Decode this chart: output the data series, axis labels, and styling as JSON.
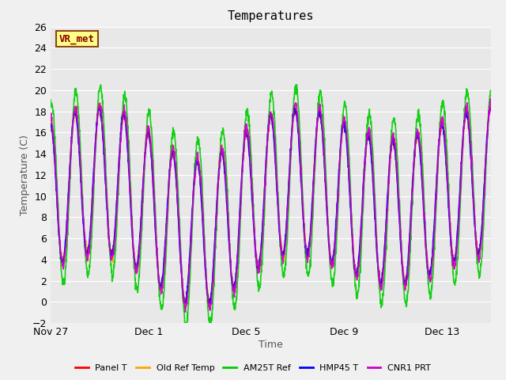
{
  "title": "Temperatures",
  "xlabel": "Time",
  "ylabel": "Temperature (C)",
  "annotation": "VR_met",
  "ylim": [
    -2,
    26
  ],
  "yticks": [
    -2,
    0,
    2,
    4,
    6,
    8,
    10,
    12,
    14,
    16,
    18,
    20,
    22,
    24,
    26
  ],
  "bg_color": "#e8e8e8",
  "plot_bg": "#e8e8e8",
  "series": [
    {
      "label": "Panel T",
      "color": "#ff0000",
      "lw": 1.2
    },
    {
      "label": "Old Ref Temp",
      "color": "#ffa500",
      "lw": 1.2
    },
    {
      "label": "AM25T Ref",
      "color": "#00cc00",
      "lw": 1.2
    },
    {
      "label": "HMP45 T",
      "color": "#0000ff",
      "lw": 1.2
    },
    {
      "label": "CNR1 PRT",
      "color": "#cc00cc",
      "lw": 1.2
    }
  ],
  "xtick_labels": [
    "Nov 27",
    "Dec 1",
    "Dec 5",
    "Dec 9",
    "Dec 13"
  ],
  "xtick_positions": [
    0,
    4,
    8,
    12,
    16
  ],
  "total_days": 18
}
